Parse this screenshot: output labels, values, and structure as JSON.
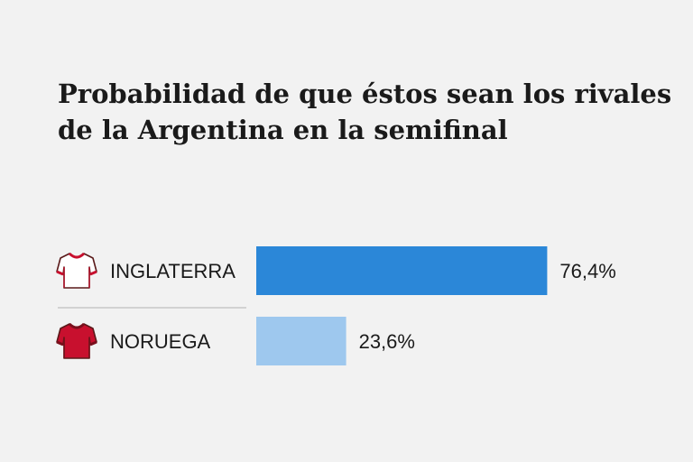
{
  "title_lines": [
    "Probabilidad de que éstos sean los rivales",
    "de la Argentina en la semifinal"
  ],
  "colors": {
    "background": "#f2f2f2",
    "text": "#1a1a1a",
    "divider": "#c8c8c8"
  },
  "chart_data": {
    "type": "bar",
    "orientation": "horizontal",
    "categories": [
      "INGLATERRA",
      "NORUEGA"
    ],
    "values": [
      76.4,
      23.6
    ],
    "value_labels": [
      "76,4%",
      "23,6%"
    ],
    "bar_colors": [
      "#2b87d8",
      "#9ec8ee"
    ],
    "icons": [
      "england-jersey-icon",
      "norway-jersey-icon"
    ],
    "jersey_colors": [
      {
        "body": "#ffffff",
        "trim": "#c8102e"
      },
      {
        "body": "#c8102e",
        "trim": "#7a0f1c"
      }
    ],
    "xlim": [
      0,
      100
    ],
    "grid": false,
    "legend": "none"
  }
}
